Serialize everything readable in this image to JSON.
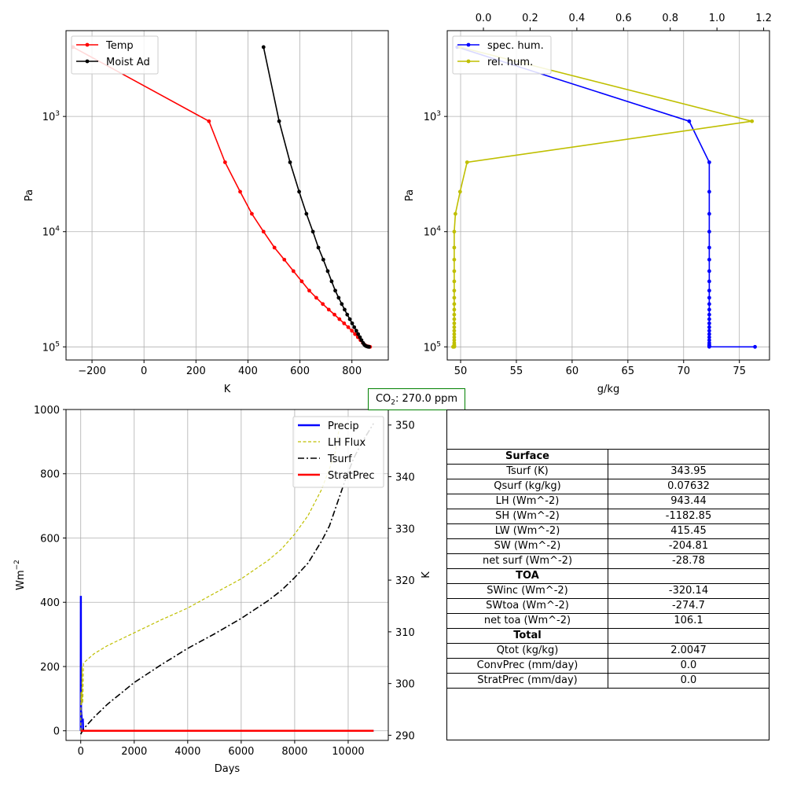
{
  "colors": {
    "temp": "#ff0000",
    "moist": "#000000",
    "spec": "#0000ff",
    "rel": "#bfbf00",
    "precip": "#0000ff",
    "lh": "#bfbf00",
    "tsurf": "#000000",
    "strat": "#ff0000",
    "co2_border": "#008000",
    "grid": "#b0b0b0"
  },
  "co2": {
    "label": "CO",
    "sub": "2",
    "suffix": ": 270.0 ppm"
  },
  "chart_data": [
    {
      "type": "line",
      "yscale": "log",
      "yinvert": true,
      "xlabel": "K",
      "ylabel": "Pa",
      "xlim": [
        -300,
        940
      ],
      "ylim": [
        130000,
        180
      ],
      "xticks": [
        -200,
        0,
        200,
        400,
        600,
        800
      ],
      "yticks": [
        1000,
        10000,
        100000
      ],
      "ytick_labels": [
        {
          "base": "10",
          "exp": "3"
        },
        {
          "base": "10",
          "exp": "4"
        },
        {
          "base": "10",
          "exp": "5"
        }
      ],
      "grid": true,
      "legend": "upper left",
      "series": [
        {
          "name": "Temp",
          "color": "temp",
          "x": [
            -273,
            250,
            312,
            370,
            415,
            460,
            502,
            540,
            575,
            607,
            636,
            663,
            688,
            711,
            733,
            752,
            770,
            786,
            800,
            812,
            823,
            833,
            842,
            849,
            855,
            860,
            864,
            867,
            870
          ],
          "y": [
            250,
            1100,
            2500,
            4500,
            7000,
            10000,
            13750,
            17500,
            22000,
            27000,
            32500,
            37500,
            42500,
            47500,
            52500,
            57500,
            62500,
            67500,
            72500,
            77500,
            82500,
            87500,
            92500,
            96000,
            98000,
            99000,
            99500,
            99800,
            100000
          ]
        },
        {
          "name": "Moist Ad",
          "color": "moist",
          "x": [
            460,
            520,
            562,
            597,
            625,
            650,
            671,
            690,
            707,
            722,
            736,
            749,
            761,
            772,
            782,
            792,
            801,
            809,
            817,
            824,
            831,
            837,
            843,
            848,
            853,
            857,
            860,
            863,
            866
          ],
          "y": [
            250,
            1100,
            2500,
            4500,
            7000,
            10000,
            13750,
            17500,
            22000,
            27000,
            32500,
            37500,
            42500,
            47500,
            52500,
            57500,
            62500,
            67500,
            72500,
            77500,
            82500,
            87500,
            92500,
            96000,
            98000,
            99000,
            99500,
            99800,
            100000
          ]
        }
      ]
    },
    {
      "type": "line",
      "yscale": "log",
      "yinvert": true,
      "xlabel": "g/kg",
      "ylabel": "Pa",
      "xlim": [
        48.8,
        77.7
      ],
      "ylim": [
        130000,
        180
      ],
      "xticks": [
        50,
        55,
        60,
        65,
        70,
        75
      ],
      "x2lim": [
        -0.155,
        1.225
      ],
      "x2ticks": [
        0.0,
        0.2,
        0.4,
        0.6,
        0.8,
        1.0,
        1.2
      ],
      "yticks": [
        1000,
        10000,
        100000
      ],
      "ytick_labels": [
        {
          "base": "10",
          "exp": "3"
        },
        {
          "base": "10",
          "exp": "4"
        },
        {
          "base": "10",
          "exp": "5"
        }
      ],
      "grid": true,
      "legend": "upper left",
      "series": [
        {
          "name": "spec. hum.",
          "color": "spec",
          "axis": "bottom",
          "x": [
            49.7,
            70.5,
            72.3,
            72.3,
            72.3,
            72.3,
            72.3,
            72.3,
            72.3,
            72.3,
            72.3,
            72.3,
            72.3,
            72.3,
            72.3,
            72.3,
            72.3,
            72.3,
            72.3,
            72.3,
            72.3,
            72.3,
            72.3,
            72.3,
            72.3,
            72.3,
            72.3,
            72.3,
            76.4
          ],
          "y": [
            250,
            1100,
            2500,
            4500,
            7000,
            10000,
            13750,
            17500,
            22000,
            27000,
            32500,
            37500,
            42500,
            47500,
            52500,
            57500,
            62500,
            67500,
            72500,
            77500,
            82500,
            87500,
            92500,
            96000,
            98000,
            99000,
            99500,
            99800,
            100000
          ]
        },
        {
          "name": "rel. hum.",
          "color": "rel",
          "axis": "top",
          "x": [
            -0.1,
            1.15,
            -0.07,
            -0.1,
            -0.12,
            -0.125,
            -0.125,
            -0.125,
            -0.125,
            -0.125,
            -0.125,
            -0.125,
            -0.125,
            -0.125,
            -0.125,
            -0.125,
            -0.125,
            -0.125,
            -0.125,
            -0.125,
            -0.125,
            -0.125,
            -0.125,
            -0.125,
            -0.125,
            -0.125,
            -0.125,
            -0.125,
            -0.13
          ],
          "y": [
            250,
            1100,
            2500,
            4500,
            7000,
            10000,
            13750,
            17500,
            22000,
            27000,
            32500,
            37500,
            42500,
            47500,
            52500,
            57500,
            62500,
            67500,
            72500,
            77500,
            82500,
            87500,
            92500,
            96000,
            98000,
            99000,
            99500,
            99800,
            100000
          ]
        }
      ]
    },
    {
      "type": "line",
      "xlabel": "Days",
      "ylabel": "Wm",
      "ylabel_sup": "−2",
      "y2label": "K",
      "xlim": [
        -550,
        11500
      ],
      "ylim": [
        -30,
        1000
      ],
      "y2lim": [
        289,
        353
      ],
      "xticks": [
        0,
        2000,
        4000,
        6000,
        8000,
        10000
      ],
      "yticks": [
        0,
        200,
        400,
        600,
        800,
        1000
      ],
      "y2ticks": [
        290,
        300,
        310,
        320,
        330,
        340,
        350
      ],
      "grid": true,
      "legend": "upper right",
      "series": [
        {
          "name": "Precip",
          "color": "precip",
          "style": "solid",
          "width": 2.5,
          "axis": "left",
          "x": [
            0,
            5,
            10,
            15,
            20,
            25,
            30,
            35,
            40,
            45,
            50,
            60,
            70,
            80,
            90,
            100,
            10950
          ],
          "y": [
            0,
            420,
            100,
            40,
            60,
            30,
            50,
            35,
            40,
            35,
            30,
            32,
            30,
            31,
            0,
            0,
            0
          ]
        },
        {
          "name": "LH Flux",
          "color": "lh",
          "style": "dashed",
          "width": 1.2,
          "axis": "left",
          "x": [
            0,
            10,
            20,
            30,
            40,
            50,
            60,
            70,
            80,
            100,
            200,
            500,
            1000,
            2000,
            3000,
            4000,
            5000,
            6000,
            7000,
            7500,
            8000,
            8500,
            9000,
            9500,
            9700
          ],
          "y": [
            0,
            120,
            80,
            110,
            95,
            200,
            90,
            85,
            100,
            210,
            218,
            240,
            265,
            305,
            345,
            382,
            428,
            473,
            530,
            565,
            612,
            670,
            750,
            860,
            960
          ]
        },
        {
          "name": "Tsurf",
          "color": "tsurf",
          "style": "dashdot",
          "width": 1.6,
          "axis": "right",
          "x": [
            0,
            100,
            500,
            1000,
            2000,
            3000,
            4000,
            5000,
            6000,
            7000,
            7500,
            8000,
            8500,
            9000,
            9300,
            9600,
            9900,
            10200,
            10500,
            10950
          ],
          "y": [
            290.2,
            291.2,
            293.5,
            296.0,
            300.2,
            303.6,
            306.8,
            309.6,
            312.6,
            316.0,
            318.0,
            320.5,
            323.3,
            327.5,
            330.5,
            335.0,
            339.5,
            343.5,
            346.5,
            350.3
          ]
        },
        {
          "name": "StratPrec",
          "color": "strat",
          "style": "solid",
          "width": 2.5,
          "axis": "left",
          "x": [
            0,
            10950
          ],
          "y": [
            0,
            0
          ]
        }
      ]
    },
    {
      "type": "table",
      "rows": [
        {
          "label": "Surface",
          "value": "",
          "header": true
        },
        {
          "label": "Tsurf (K)",
          "value": "343.95"
        },
        {
          "label": "Qsurf (kg/kg)",
          "value": "0.07632"
        },
        {
          "label": "LH (Wm^-2)",
          "value": "943.44"
        },
        {
          "label": "SH (Wm^-2)",
          "value": "-1182.85"
        },
        {
          "label": "LW (Wm^-2)",
          "value": "415.45"
        },
        {
          "label": "SW (Wm^-2)",
          "value": "-204.81"
        },
        {
          "label": "net surf (Wm^-2)",
          "value": "-28.78"
        },
        {
          "label": "TOA",
          "value": "",
          "header": true
        },
        {
          "label": "SWinc (Wm^-2)",
          "value": "-320.14"
        },
        {
          "label": "SWtoa (Wm^-2)",
          "value": "-274.7"
        },
        {
          "label": "net toa (Wm^-2)",
          "value": "106.1"
        },
        {
          "label": "Total",
          "value": "",
          "header": true
        },
        {
          "label": "Qtot (kg/kg)",
          "value": "2.0047"
        },
        {
          "label": "ConvPrec (mm/day)",
          "value": "0.0"
        },
        {
          "label": "StratPrec (mm/day)",
          "value": "0.0"
        }
      ]
    }
  ]
}
